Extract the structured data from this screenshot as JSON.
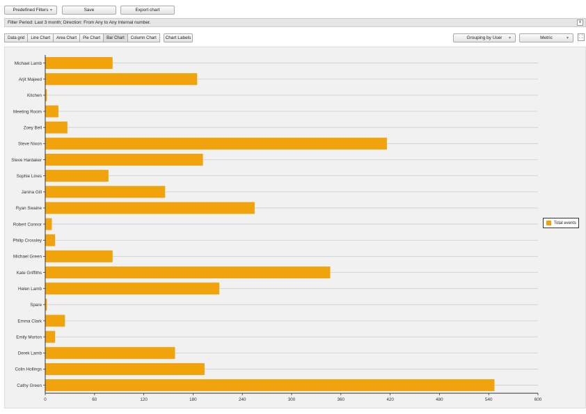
{
  "toolbar": {
    "predefined_filters": "Predefined Filters",
    "save": "Save",
    "export": "Export chart"
  },
  "filter": {
    "text": "Filter Period: Last 3 month; Direction: From Any to Any Internal number.",
    "close": "x"
  },
  "tabs": [
    {
      "label": "Data grid"
    },
    {
      "label": "Line Chart"
    },
    {
      "label": "Area Chart"
    },
    {
      "label": "Pie Chart"
    },
    {
      "label": "Bar Chart",
      "active": true
    },
    {
      "label": "Column Chart"
    }
  ],
  "chart_labels": "Chart Labels",
  "grouping": "Grouping by User",
  "metric": "Metric",
  "icons": {
    "fullscreen": "fullscreen-icon",
    "dropdown": "chevron-down-icon"
  },
  "chart_data": {
    "type": "bar",
    "orientation": "horizontal",
    "categories": [
      "Michael Lamb",
      "Arjit Majeed",
      "Kitchen",
      "Meeting Room",
      "Zoey Bell",
      "Steve Nixon",
      "Steve Hardaker",
      "Sophie Lines",
      "Janina Gill",
      "Ryan Swaine",
      "Robert Connor",
      "Philip Crossley",
      "Michael Green",
      "Kate Griffiths",
      "Helen Lamb",
      "Spare",
      "Emma Clark",
      "Emily Morton",
      "Derek Lamb",
      "Colin Hollings",
      "Cathy Green"
    ],
    "series": [
      {
        "name": "Total events",
        "color": "#f0a30a",
        "values": [
          82,
          185,
          2,
          16,
          27,
          416,
          192,
          77,
          146,
          255,
          8,
          12,
          82,
          347,
          212,
          2,
          24,
          12,
          158,
          194,
          547
        ]
      }
    ],
    "xlim": [
      0,
      600
    ],
    "ticks": [
      0,
      60,
      120,
      180,
      240,
      300,
      360,
      420,
      480,
      540,
      600
    ],
    "grid": true,
    "legend": "right"
  }
}
